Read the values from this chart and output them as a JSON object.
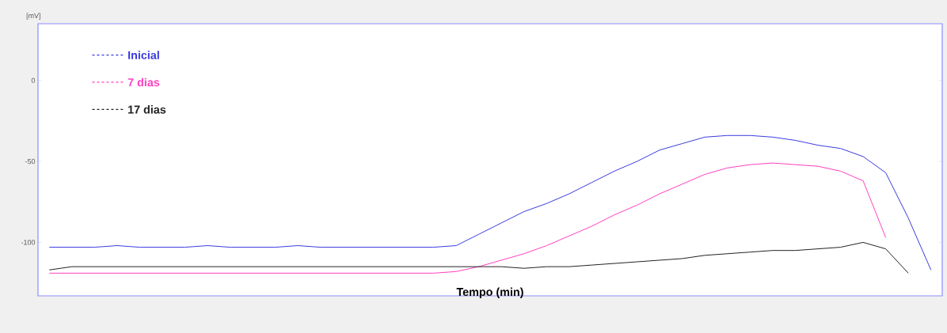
{
  "chart_data": {
    "type": "line",
    "xlabel": "Tempo (min)",
    "ylabel": "[mV]",
    "categories": [
      null,
      null,
      null,
      null,
      null,
      null,
      null,
      null,
      null,
      null,
      null,
      null,
      null,
      null,
      null,
      null,
      null,
      null,
      null,
      null,
      null,
      null,
      null,
      null,
      null,
      null,
      null,
      null,
      null,
      null,
      null,
      null,
      null,
      null,
      null,
      null,
      null,
      null,
      null,
      null
    ],
    "series": [
      {
        "name": "Inicial",
        "color": "#3a3adf",
        "values": [
          -103,
          -103,
          -103,
          -102,
          -103,
          -103,
          -103,
          -102,
          -103,
          -103,
          -103,
          -102,
          -103,
          -103,
          -103,
          -103,
          -103,
          -103,
          -102,
          -95,
          -88,
          -81,
          -76,
          -70,
          -63,
          -56,
          -50,
          -43,
          -39,
          -35,
          -34,
          -34,
          -35,
          -37,
          -40,
          -42,
          -47,
          -57,
          -85,
          -117
        ]
      },
      {
        "name": "7 dias",
        "color": "#ff3fc0",
        "values": [
          -119,
          -119,
          -119,
          -119,
          -119,
          -119,
          -119,
          -119,
          -119,
          -119,
          -119,
          -119,
          -119,
          -119,
          -119,
          -119,
          -119,
          -119,
          -118,
          -115,
          -111,
          -107,
          -102,
          -96,
          -90,
          -83,
          -77,
          -70,
          -64,
          -58,
          -54,
          -52,
          -51,
          -52,
          -53,
          -56,
          -62,
          -97,
          null,
          null
        ]
      },
      {
        "name": "17 dias",
        "color": "#222222",
        "values": [
          -117,
          -115,
          -115,
          -115,
          -115,
          -115,
          -115,
          -115,
          -115,
          -115,
          -115,
          -115,
          -115,
          -115,
          -115,
          -115,
          -115,
          -115,
          -115,
          -115,
          -115,
          -116,
          -115,
          -115,
          -114,
          -113,
          -112,
          -111,
          -110,
          -108,
          -107,
          -106,
          -105,
          -105,
          -104,
          -103,
          -100,
          -104,
          -119,
          null
        ]
      }
    ],
    "ylim": [
      -133,
      35
    ],
    "yticks": [
      0,
      -50,
      -100
    ],
    "legend": "top left",
    "line_style": "solid",
    "grid": false
  }
}
